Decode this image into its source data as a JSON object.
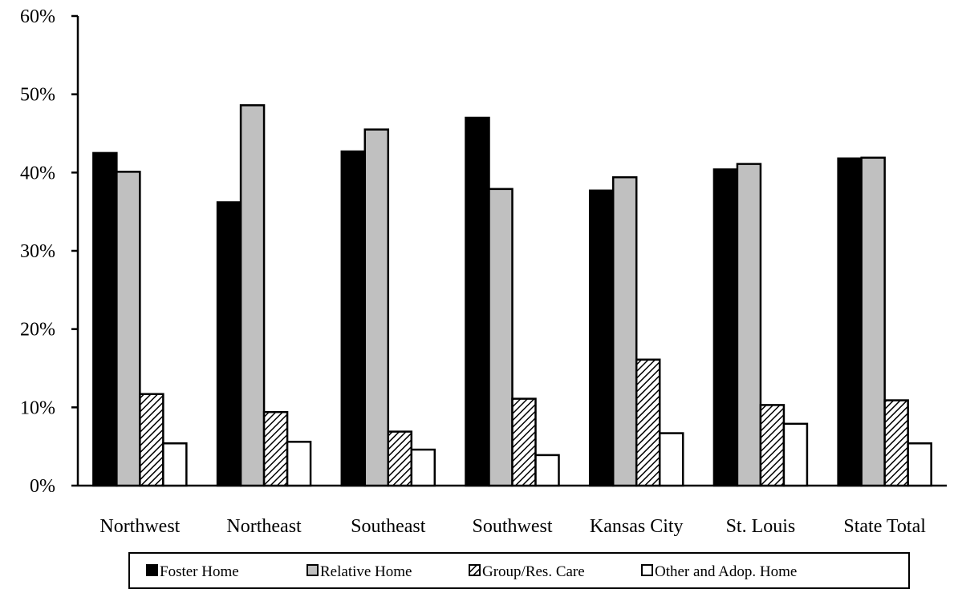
{
  "chart_data": {
    "type": "bar",
    "title": "",
    "xlabel": "",
    "ylabel": "",
    "categories": [
      "Northwest",
      "Northeast",
      "Southeast",
      "Southwest",
      "Kansas City",
      "St. Louis",
      "State Total"
    ],
    "ylim": [
      0,
      60
    ],
    "yticks": [
      "0%",
      "10%",
      "20%",
      "30%",
      "40%",
      "50%",
      "60%"
    ],
    "grid": false,
    "legend_position": "bottom",
    "series": [
      {
        "name": "Foster Home",
        "fill": "#000000",
        "pattern": "solid",
        "values": [
          42.5,
          36.2,
          42.7,
          47.0,
          37.7,
          40.4,
          41.8
        ]
      },
      {
        "name": "Relative Home",
        "fill": "#c0c0c0",
        "pattern": "solid",
        "values": [
          40.1,
          48.6,
          45.5,
          37.9,
          39.4,
          41.1,
          41.9
        ]
      },
      {
        "name": "Group/Res. Care",
        "fill": "#808080",
        "pattern": "hatch",
        "values": [
          11.7,
          9.4,
          6.9,
          11.1,
          16.1,
          10.3,
          10.9
        ]
      },
      {
        "name": "Other and Adop. Home",
        "fill": "#ffffff",
        "pattern": "solid",
        "values": [
          5.4,
          5.6,
          4.6,
          3.9,
          6.7,
          7.9,
          5.4
        ]
      }
    ]
  }
}
